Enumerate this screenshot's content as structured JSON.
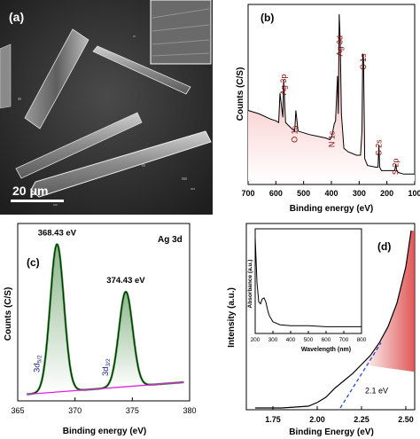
{
  "panel_a": {
    "label": "(a)",
    "scale_bar": "20 μm"
  },
  "chart_data": [
    {
      "panel": "(b)",
      "type": "line",
      "xlabel": "Binding energy (eV)",
      "ylabel": "Counts (C/S)",
      "xlim": [
        700,
        100
      ],
      "x_ticks": [
        700,
        600,
        500,
        400,
        300,
        200,
        100
      ],
      "series": [
        {
          "x": [
            700,
            660,
            620,
            600,
            590,
            585,
            575,
            572,
            565,
            540,
            532,
            528,
            520,
            480,
            450,
            420,
            405,
            398,
            390,
            385,
            378,
            375,
            372,
            368,
            364,
            355,
            340,
            310,
            295,
            290,
            287,
            284,
            280,
            270,
            240,
            232,
            229,
            226,
            220,
            200,
            172,
            168,
            165,
            160,
            140,
            120,
            100
          ],
          "y": [
            0.42,
            0.4,
            0.37,
            0.36,
            0.35,
            0.52,
            0.38,
            0.6,
            0.35,
            0.31,
            0.3,
            0.42,
            0.3,
            0.28,
            0.27,
            0.26,
            0.25,
            0.27,
            0.34,
            0.36,
            0.62,
            0.4,
            0.98,
            0.82,
            0.4,
            0.2,
            0.18,
            0.16,
            0.16,
            0.3,
            0.75,
            0.72,
            0.14,
            0.1,
            0.09,
            0.09,
            0.22,
            0.09,
            0.07,
            0.07,
            0.07,
            0.11,
            0.07,
            0.06,
            0.05,
            0.05,
            0.05
          ]
        }
      ],
      "peaks": [
        {
          "label": "Ag 3p",
          "x": 572
        },
        {
          "label": "O 1s",
          "x": 532
        },
        {
          "label": "N 1s",
          "x": 398
        },
        {
          "label": "Ag 3d",
          "x": 370
        },
        {
          "label": "C 1s",
          "x": 285
        },
        {
          "label": "S 2s",
          "x": 229
        },
        {
          "label": "S 2p",
          "x": 168
        }
      ]
    },
    {
      "panel": "(c)",
      "type": "line",
      "title": "Ag 3d",
      "xlabel": "Binding energy (eV)",
      "ylabel": "Counts (C/S)",
      "xlim": [
        365,
        380
      ],
      "x_ticks": [
        365,
        370,
        375,
        380
      ],
      "peaks": [
        {
          "center": 368.43,
          "label": "368.43 eV",
          "height": 0.98,
          "sigma": 0.6,
          "component": "3d5/2"
        },
        {
          "center": 374.43,
          "label": "374.43 eV",
          "height": 0.63,
          "sigma": 0.6,
          "component": "3d3/2"
        }
      ],
      "component_labels": {
        "main": "3d",
        "sub_5_2": "5/2",
        "sub_3_2": "3/2"
      },
      "baseline": {
        "x": [
          365.8,
          379.5
        ],
        "y": [
          0.02,
          0.1
        ]
      }
    },
    {
      "panel": "(d)",
      "type": "line",
      "xlabel": "Binding Energy (eV)",
      "ylabel": "Intensity (a.u.)",
      "xlim": [
        1.6,
        2.55
      ],
      "x_ticks": [
        1.75,
        2.0,
        2.25,
        2.5
      ],
      "series": [
        {
          "x": [
            1.65,
            1.8,
            1.95,
            2.0,
            2.05,
            2.1,
            2.15,
            2.2,
            2.25,
            2.3,
            2.35,
            2.4,
            2.45,
            2.5,
            2.53
          ],
          "y": [
            0.0,
            0.0,
            0.01,
            0.03,
            0.06,
            0.11,
            0.15,
            0.19,
            0.24,
            0.29,
            0.36,
            0.45,
            0.58,
            0.78,
            0.98
          ]
        }
      ],
      "tangent": {
        "x": [
          2.13,
          2.36
        ],
        "y": [
          0.0,
          0.36
        ]
      },
      "annotation": "2.1 eV",
      "inset": {
        "xlabel": "Wavelength (nm)",
        "ylabel": "Absorbance (a.u.)",
        "xlim": [
          200,
          800
        ],
        "x_ticks": [
          200,
          300,
          400,
          500,
          600,
          700,
          800
        ],
        "x": [
          200,
          210,
          220,
          230,
          240,
          250,
          260,
          270,
          280,
          300,
          340,
          400,
          500,
          600,
          700,
          800
        ],
        "y": [
          0.95,
          0.5,
          0.3,
          0.28,
          0.33,
          0.34,
          0.3,
          0.22,
          0.16,
          0.1,
          0.07,
          0.06,
          0.06,
          0.05,
          0.05,
          0.05
        ]
      }
    }
  ]
}
